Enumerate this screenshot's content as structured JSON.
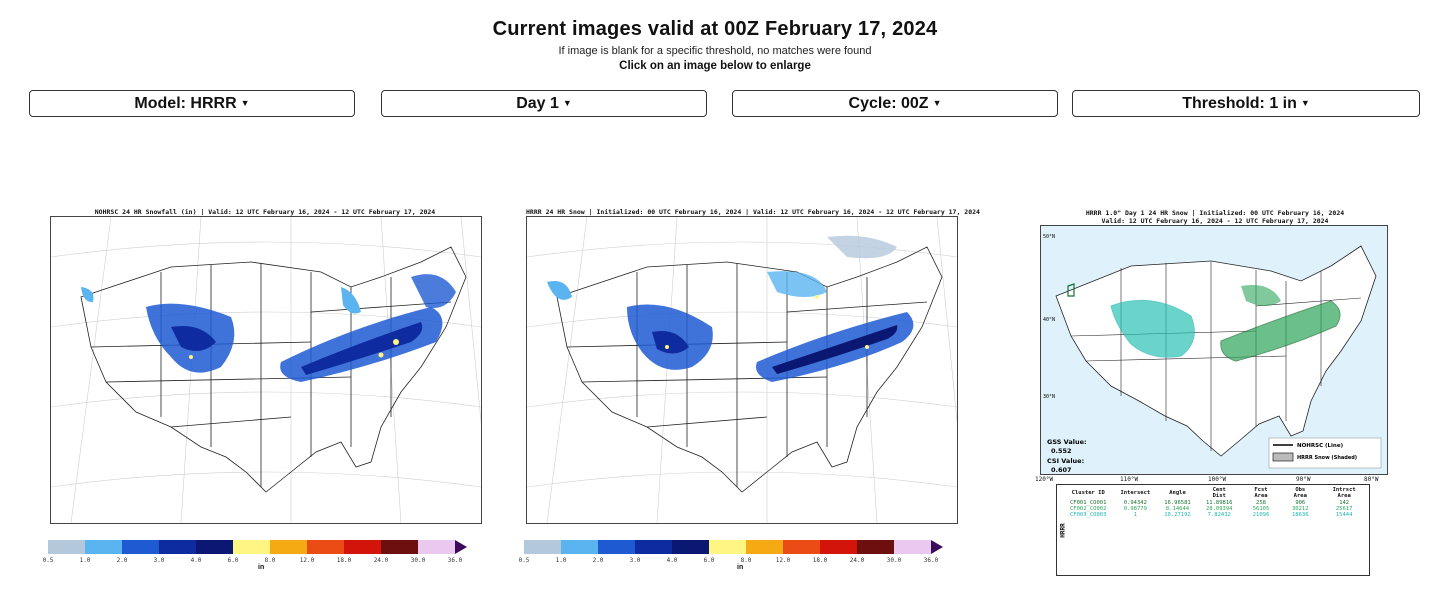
{
  "header": {
    "title": "Current images valid at 00Z February 17, 2024",
    "note": "If image is blank for a specific threshold, no matches were found",
    "instruction": "Click on an image below to enlarge"
  },
  "controls": {
    "model": "Model: HRRR",
    "day": "Day 1",
    "cycle": "Cycle: 00Z",
    "threshold": "Threshold: 1 in"
  },
  "maps": {
    "nohrsc_title": "NOHRSC 24 HR Snowfall (in) | Valid: 12 UTC February 16, 2024 - 12 UTC February 17, 2024",
    "hrrr_title": "HRRR 24 HR Snow | Initialized: 00 UTC February 16, 2024 | Valid: 12 UTC February 16, 2024 - 12 UTC February 17, 2024",
    "compare_title_line1": "HRRR 1.0\" Day 1 24 HR Snow | Initialized: 00 UTC February 16, 2024",
    "compare_title_line2": "Valid: 12 UTC February 16, 2024 - 12 UTC February 17, 2024",
    "gss_label": "GSS Value:",
    "gss_value": "0.552",
    "csi_label": "CSI Value:",
    "csi_value": "0.607",
    "legend_line": "NOHRSC (Line)",
    "legend_shaded": "HRRR Snow (Shaded)",
    "lat_labels": [
      "50°N",
      "40°N",
      "30°N"
    ],
    "lon_labels": [
      "120°W",
      "110°W",
      "100°W",
      "90°W",
      "80°W"
    ]
  },
  "colorbar": {
    "ticks": [
      "0.5",
      "1.0",
      "2.0",
      "3.0",
      "4.0",
      "6.0",
      "8.0",
      "12.0",
      "18.0",
      "24.0",
      "30.0",
      "36.0"
    ],
    "colors": [
      "#b4c8dc",
      "#5ab4f0",
      "#1e5ad2",
      "#0f2ba0",
      "#0a1773",
      "#fff582",
      "#f5aa14",
      "#eb4b14",
      "#d2140a",
      "#6e0f0f",
      "#ebc8f0",
      "#3c0a5a"
    ],
    "unit": "in"
  },
  "stats_table": {
    "headers": [
      "Cluster ID",
      "Intersect",
      "Angle",
      "Cent Dist",
      "Fcst Area",
      "Obs Area",
      "Intrsct Area"
    ],
    "rows": [
      [
        "CF001_CO001",
        "0.94342",
        "16.96581",
        "11.89816",
        "258",
        "906",
        "142"
      ],
      [
        "CF002_CO002",
        "0.98779",
        "8.14644",
        "28.09394",
        "56105",
        "30212",
        "25617"
      ],
      [
        "CF003_CO003",
        "1",
        "10.27192",
        "7.82432",
        "21096",
        "18636",
        "15444"
      ]
    ],
    "row_colors": [
      "#1a6e32",
      "#2ca55a",
      "#1eb4b4"
    ],
    "side_label": "HRRR"
  }
}
